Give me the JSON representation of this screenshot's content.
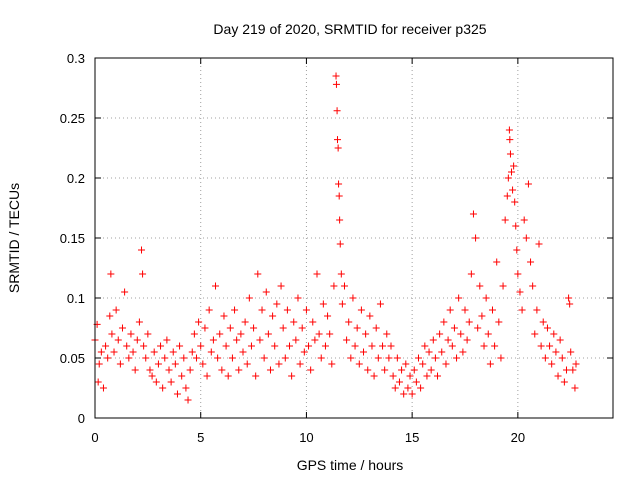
{
  "chart_data": {
    "type": "scatter",
    "title": "Day 219 of 2020, SRMTID for receiver p325",
    "xlabel": "GPS time / hours",
    "ylabel": "SRMTID / TECUs",
    "xlim": [
      0,
      24.5
    ],
    "ylim": [
      0,
      0.3
    ],
    "xticks": [
      0,
      5,
      10,
      15,
      20
    ],
    "xtick_labels": [
      "0",
      "5",
      "10",
      "15",
      "20"
    ],
    "yticks": [
      0,
      0.05,
      0.1,
      0.15,
      0.2,
      0.25,
      0.3
    ],
    "ytick_labels": [
      "0",
      "0.05",
      "0.1",
      "0.15",
      "0.2",
      "0.25",
      "0.3"
    ],
    "grid": true,
    "marker": "+",
    "color": "#ff0000",
    "series": [
      {
        "name": "SRMTID",
        "points": [
          [
            0.0,
            0.065
          ],
          [
            0.1,
            0.078
          ],
          [
            0.15,
            0.03
          ],
          [
            0.2,
            0.045
          ],
          [
            0.3,
            0.055
          ],
          [
            0.4,
            0.025
          ],
          [
            0.5,
            0.06
          ],
          [
            0.6,
            0.05
          ],
          [
            0.7,
            0.085
          ],
          [
            0.75,
            0.12
          ],
          [
            0.8,
            0.07
          ],
          [
            0.9,
            0.055
          ],
          [
            1.0,
            0.09
          ],
          [
            1.1,
            0.065
          ],
          [
            1.2,
            0.045
          ],
          [
            1.3,
            0.075
          ],
          [
            1.4,
            0.105
          ],
          [
            1.5,
            0.06
          ],
          [
            1.6,
            0.05
          ],
          [
            1.7,
            0.07
          ],
          [
            1.8,
            0.055
          ],
          [
            1.9,
            0.04
          ],
          [
            2.0,
            0.065
          ],
          [
            2.1,
            0.08
          ],
          [
            2.2,
            0.14
          ],
          [
            2.25,
            0.12
          ],
          [
            2.3,
            0.06
          ],
          [
            2.4,
            0.05
          ],
          [
            2.5,
            0.07
          ],
          [
            2.6,
            0.04
          ],
          [
            2.7,
            0.035
          ],
          [
            2.8,
            0.055
          ],
          [
            2.9,
            0.03
          ],
          [
            3.0,
            0.045
          ],
          [
            3.1,
            0.06
          ],
          [
            3.2,
            0.025
          ],
          [
            3.3,
            0.05
          ],
          [
            3.4,
            0.065
          ],
          [
            3.5,
            0.04
          ],
          [
            3.6,
            0.03
          ],
          [
            3.7,
            0.055
          ],
          [
            3.8,
            0.045
          ],
          [
            3.9,
            0.02
          ],
          [
            4.0,
            0.06
          ],
          [
            4.1,
            0.035
          ],
          [
            4.2,
            0.05
          ],
          [
            4.3,
            0.025
          ],
          [
            4.4,
            0.015
          ],
          [
            4.5,
            0.04
          ],
          [
            4.6,
            0.055
          ],
          [
            4.7,
            0.07
          ],
          [
            4.8,
            0.05
          ],
          [
            4.9,
            0.08
          ],
          [
            5.0,
            0.06
          ],
          [
            5.1,
            0.045
          ],
          [
            5.2,
            0.075
          ],
          [
            5.3,
            0.035
          ],
          [
            5.4,
            0.09
          ],
          [
            5.5,
            0.055
          ],
          [
            5.6,
            0.065
          ],
          [
            5.7,
            0.11
          ],
          [
            5.8,
            0.05
          ],
          [
            5.9,
            0.07
          ],
          [
            6.0,
            0.04
          ],
          [
            6.1,
            0.085
          ],
          [
            6.2,
            0.06
          ],
          [
            6.3,
            0.035
          ],
          [
            6.4,
            0.075
          ],
          [
            6.5,
            0.05
          ],
          [
            6.6,
            0.09
          ],
          [
            6.7,
            0.065
          ],
          [
            6.8,
            0.04
          ],
          [
            6.9,
            0.07
          ],
          [
            7.0,
            0.055
          ],
          [
            7.1,
            0.08
          ],
          [
            7.2,
            0.045
          ],
          [
            7.3,
            0.1
          ],
          [
            7.4,
            0.06
          ],
          [
            7.5,
            0.075
          ],
          [
            7.6,
            0.035
          ],
          [
            7.7,
            0.12
          ],
          [
            7.8,
            0.065
          ],
          [
            7.9,
            0.09
          ],
          [
            8.0,
            0.05
          ],
          [
            8.1,
            0.105
          ],
          [
            8.2,
            0.07
          ],
          [
            8.3,
            0.04
          ],
          [
            8.4,
            0.085
          ],
          [
            8.5,
            0.06
          ],
          [
            8.6,
            0.095
          ],
          [
            8.7,
            0.045
          ],
          [
            8.8,
            0.11
          ],
          [
            8.9,
            0.075
          ],
          [
            9.0,
            0.05
          ],
          [
            9.1,
            0.09
          ],
          [
            9.2,
            0.06
          ],
          [
            9.3,
            0.035
          ],
          [
            9.4,
            0.08
          ],
          [
            9.5,
            0.065
          ],
          [
            9.6,
            0.1
          ],
          [
            9.7,
            0.045
          ],
          [
            9.8,
            0.075
          ],
          [
            9.9,
            0.055
          ],
          [
            10.0,
            0.09
          ],
          [
            10.1,
            0.06
          ],
          [
            10.2,
            0.04
          ],
          [
            10.3,
            0.08
          ],
          [
            10.4,
            0.065
          ],
          [
            10.5,
            0.12
          ],
          [
            10.6,
            0.07
          ],
          [
            10.7,
            0.05
          ],
          [
            10.8,
            0.095
          ],
          [
            10.9,
            0.06
          ],
          [
            11.0,
            0.085
          ],
          [
            11.1,
            0.07
          ],
          [
            11.2,
            0.045
          ],
          [
            11.3,
            0.11
          ],
          [
            11.4,
            0.285
          ],
          [
            11.42,
            0.278
          ],
          [
            11.45,
            0.256
          ],
          [
            11.47,
            0.232
          ],
          [
            11.5,
            0.225
          ],
          [
            11.52,
            0.195
          ],
          [
            11.55,
            0.185
          ],
          [
            11.57,
            0.165
          ],
          [
            11.6,
            0.145
          ],
          [
            11.65,
            0.12
          ],
          [
            11.7,
            0.095
          ],
          [
            11.8,
            0.11
          ],
          [
            11.9,
            0.065
          ],
          [
            12.0,
            0.08
          ],
          [
            12.1,
            0.05
          ],
          [
            12.2,
            0.1
          ],
          [
            12.3,
            0.06
          ],
          [
            12.4,
            0.075
          ],
          [
            12.5,
            0.045
          ],
          [
            12.6,
            0.09
          ],
          [
            12.7,
            0.055
          ],
          [
            12.8,
            0.07
          ],
          [
            12.9,
            0.04
          ],
          [
            13.0,
            0.085
          ],
          [
            13.1,
            0.06
          ],
          [
            13.2,
            0.035
          ],
          [
            13.3,
            0.075
          ],
          [
            13.4,
            0.05
          ],
          [
            13.5,
            0.095
          ],
          [
            13.6,
            0.06
          ],
          [
            13.7,
            0.04
          ],
          [
            13.8,
            0.07
          ],
          [
            13.9,
            0.05
          ],
          [
            14.0,
            0.06
          ],
          [
            14.1,
            0.035
          ],
          [
            14.2,
            0.025
          ],
          [
            14.3,
            0.05
          ],
          [
            14.4,
            0.03
          ],
          [
            14.5,
            0.04
          ],
          [
            14.6,
            0.02
          ],
          [
            14.7,
            0.045
          ],
          [
            14.8,
            0.025
          ],
          [
            14.9,
            0.035
          ],
          [
            15.0,
            0.02
          ],
          [
            15.1,
            0.04
          ],
          [
            15.2,
            0.03
          ],
          [
            15.3,
            0.05
          ],
          [
            15.4,
            0.025
          ],
          [
            15.5,
            0.045
          ],
          [
            15.6,
            0.06
          ],
          [
            15.7,
            0.035
          ],
          [
            15.8,
            0.055
          ],
          [
            15.9,
            0.04
          ],
          [
            16.0,
            0.065
          ],
          [
            16.1,
            0.05
          ],
          [
            16.2,
            0.035
          ],
          [
            16.3,
            0.07
          ],
          [
            16.4,
            0.055
          ],
          [
            16.5,
            0.08
          ],
          [
            16.6,
            0.045
          ],
          [
            16.7,
            0.065
          ],
          [
            16.8,
            0.09
          ],
          [
            16.9,
            0.06
          ],
          [
            17.0,
            0.075
          ],
          [
            17.1,
            0.05
          ],
          [
            17.2,
            0.1
          ],
          [
            17.3,
            0.07
          ],
          [
            17.4,
            0.055
          ],
          [
            17.5,
            0.09
          ],
          [
            17.6,
            0.065
          ],
          [
            17.7,
            0.08
          ],
          [
            17.8,
            0.12
          ],
          [
            17.9,
            0.17
          ],
          [
            18.0,
            0.15
          ],
          [
            18.1,
            0.075
          ],
          [
            18.2,
            0.11
          ],
          [
            18.3,
            0.085
          ],
          [
            18.4,
            0.06
          ],
          [
            18.5,
            0.1
          ],
          [
            18.6,
            0.07
          ],
          [
            18.7,
            0.045
          ],
          [
            18.8,
            0.09
          ],
          [
            18.9,
            0.06
          ],
          [
            19.0,
            0.13
          ],
          [
            19.1,
            0.08
          ],
          [
            19.2,
            0.05
          ],
          [
            19.3,
            0.11
          ],
          [
            19.4,
            0.165
          ],
          [
            19.5,
            0.185
          ],
          [
            19.55,
            0.2
          ],
          [
            19.6,
            0.24
          ],
          [
            19.62,
            0.232
          ],
          [
            19.65,
            0.22
          ],
          [
            19.7,
            0.205
          ],
          [
            19.75,
            0.19
          ],
          [
            19.8,
            0.21
          ],
          [
            19.85,
            0.18
          ],
          [
            19.9,
            0.16
          ],
          [
            19.95,
            0.14
          ],
          [
            20.0,
            0.12
          ],
          [
            20.1,
            0.105
          ],
          [
            20.2,
            0.09
          ],
          [
            20.3,
            0.165
          ],
          [
            20.4,
            0.15
          ],
          [
            20.5,
            0.195
          ],
          [
            20.6,
            0.13
          ],
          [
            20.7,
            0.11
          ],
          [
            20.8,
            0.07
          ],
          [
            20.9,
            0.09
          ],
          [
            21.0,
            0.145
          ],
          [
            21.1,
            0.06
          ],
          [
            21.2,
            0.08
          ],
          [
            21.3,
            0.05
          ],
          [
            21.4,
            0.075
          ],
          [
            21.5,
            0.06
          ],
          [
            21.6,
            0.045
          ],
          [
            21.7,
            0.07
          ],
          [
            21.8,
            0.055
          ],
          [
            21.9,
            0.035
          ],
          [
            22.0,
            0.065
          ],
          [
            22.1,
            0.05
          ],
          [
            22.2,
            0.03
          ],
          [
            22.3,
            0.04
          ],
          [
            22.4,
            0.1
          ],
          [
            22.45,
            0.095
          ],
          [
            22.5,
            0.055
          ],
          [
            22.6,
            0.04
          ],
          [
            22.7,
            0.025
          ],
          [
            22.75,
            0.045
          ]
        ]
      }
    ]
  }
}
